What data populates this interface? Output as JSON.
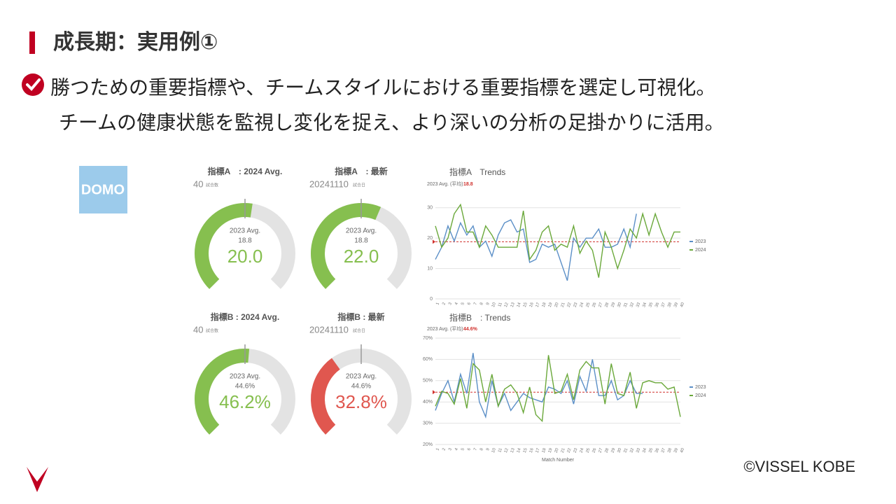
{
  "header": {
    "title": "成長期：実用例①"
  },
  "bullet": {
    "lines": [
      "勝つための重要指標や、チームスタイルにおける重要指標を選定し可視化。",
      "チームの健康状態を監視し変化を捉え、より深いの分析の足掛かりに活用。"
    ]
  },
  "logo": "DOMO",
  "gauges": [
    {
      "title": "指標A　: 2024 Avg.",
      "count": 40,
      "count_unit": "試合数",
      "avg_label_text": "2023 Avg.",
      "avg": 18.8,
      "value": 20.0,
      "value_label": "20.0",
      "min": 0,
      "max": 37.6,
      "color": "#86bf4f"
    },
    {
      "title": "指標A　: 最新",
      "date": "20241110",
      "date_unit": "試合日",
      "avg_label_text": "2023 Avg.",
      "avg": 18.8,
      "value": 22.0,
      "value_label": "22.0",
      "min": 0,
      "max": 37.6,
      "color": "#86bf4f"
    },
    {
      "title": "指標B : 2024 Avg.",
      "count": 40,
      "count_unit": "試合数",
      "avg_label_text": "2023 Avg.",
      "avg": 44.6,
      "avg_label": "44.6%",
      "value": 46.2,
      "value_label": "46.2%",
      "min": 0,
      "max": 89.2,
      "color": "#86bf4f"
    },
    {
      "title": "指標B : 最新",
      "date": "20241110",
      "date_unit": "試合日",
      "avg_label_text": "2023 Avg.",
      "avg": 44.6,
      "avg_label": "44.6%",
      "value": 32.8,
      "value_label": "32.8%",
      "min": 0,
      "max": 89.2,
      "color": "#e0574f"
    }
  ],
  "chart_data": [
    {
      "type": "line",
      "title": "指標A　Trends",
      "subtitle": "2023 Avg. (平均)",
      "avg": 18.8,
      "avg_color": "#d0312d",
      "x": [
        1,
        2,
        3,
        4,
        5,
        6,
        7,
        8,
        9,
        10,
        11,
        12,
        13,
        14,
        15,
        16,
        17,
        18,
        19,
        20,
        21,
        22,
        23,
        24,
        25,
        26,
        27,
        28,
        29,
        30,
        31,
        32,
        33,
        34,
        35,
        36,
        37,
        38,
        39,
        40
      ],
      "xlim": [
        1,
        40
      ],
      "ylim": [
        0,
        35
      ],
      "yticks": [
        0,
        10,
        20,
        30
      ],
      "grid": true,
      "legend": "right",
      "series": [
        {
          "name": "2023",
          "color": "#5b8fc7",
          "values": [
            13,
            17,
            24,
            19,
            25,
            21,
            24,
            17,
            19,
            14,
            21,
            25,
            26,
            22,
            23,
            12,
            13,
            18,
            17,
            18,
            12,
            6,
            20,
            17,
            20,
            20,
            23,
            17,
            17,
            18,
            23,
            17,
            28,
            null,
            null,
            null,
            null,
            null,
            null,
            null
          ]
        },
        {
          "name": "2024",
          "color": "#6aa83a",
          "values": [
            24,
            17,
            20,
            28,
            31,
            22,
            22,
            17,
            24,
            21,
            17,
            17,
            17,
            17,
            29,
            13,
            16,
            22,
            24,
            16,
            18,
            17,
            24,
            15,
            19,
            16,
            7,
            22,
            17,
            10,
            16,
            23,
            20,
            28,
            21,
            28,
            22,
            17,
            22,
            22
          ]
        }
      ]
    },
    {
      "type": "line",
      "title": "指標B　: Trends",
      "subtitle": "2023 Avg. (平均)",
      "avg": 44.6,
      "avg_label": "44.6%",
      "avg_color": "#d0312d",
      "xlabel": "Match Number",
      "x": [
        1,
        2,
        3,
        4,
        5,
        6,
        7,
        8,
        9,
        10,
        11,
        12,
        13,
        14,
        15,
        16,
        17,
        18,
        19,
        20,
        21,
        22,
        23,
        24,
        25,
        26,
        27,
        28,
        29,
        30,
        31,
        32,
        33,
        34,
        35,
        36,
        37,
        38,
        39,
        40
      ],
      "xlim": [
        1,
        40
      ],
      "ylim": [
        20,
        70
      ],
      "yticks": [
        {
          "value": 20,
          "label": "20%"
        },
        {
          "value": 30,
          "label": "30%"
        },
        {
          "value": 40,
          "label": "40%"
        },
        {
          "value": 50,
          "label": "50%"
        },
        {
          "value": 60,
          "label": "60%"
        },
        {
          "value": 70,
          "label": "70%"
        }
      ],
      "grid": true,
      "legend": "right",
      "series": [
        {
          "name": "2023",
          "color": "#5b8fc7",
          "values": [
            36,
            44,
            50,
            40,
            53,
            44,
            63,
            40,
            33,
            50,
            38,
            44,
            36,
            40,
            44,
            42,
            41,
            40,
            47,
            46,
            44,
            50,
            39,
            52,
            45,
            60,
            43,
            43,
            50,
            41,
            43,
            50,
            44,
            44,
            null,
            null,
            null,
            null,
            null,
            null
          ]
        },
        {
          "name": "2024",
          "color": "#6aa83a",
          "values": [
            38,
            45,
            44,
            39,
            51,
            37,
            58,
            55,
            40,
            53,
            38,
            46,
            48,
            44,
            35,
            47,
            34,
            31,
            62,
            44,
            45,
            53,
            41,
            55,
            59,
            56,
            56,
            39,
            58,
            44,
            43,
            54,
            37,
            49,
            50,
            49,
            49,
            46,
            47,
            33
          ]
        }
      ]
    }
  ],
  "footer": "©VISSEL KOBE"
}
